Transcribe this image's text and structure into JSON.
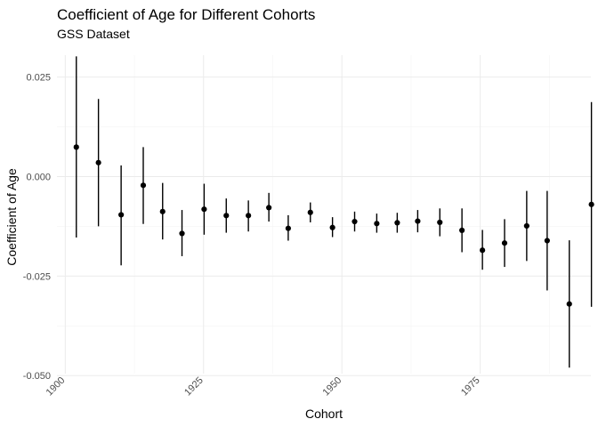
{
  "chart_data": {
    "type": "scatter",
    "title": "Coefficient of Age for Different Cohorts",
    "subtitle": "GSS Dataset",
    "xlabel": "Cohort",
    "ylabel": "Coefficient of Age",
    "xlim": [
      1898.5,
      1995
    ],
    "ylim": [
      -0.0495,
      0.0305
    ],
    "x_ticks": [
      1900,
      1925,
      1950,
      1975
    ],
    "x_tick_labels": [
      "1900",
      "1925",
      "1950",
      "1975"
    ],
    "y_ticks": [
      0.025,
      0,
      -0.025,
      -0.05
    ],
    "y_tick_labels": [
      "0.025",
      "0.000",
      "-0.025",
      "-0.050"
    ],
    "grid": true,
    "error_bars": true,
    "points": [
      {
        "x": 1902.0,
        "y": 0.0074,
        "lo": -0.0153,
        "hi": 0.0302
      },
      {
        "x": 1906.0,
        "y": 0.0035,
        "lo": -0.0125,
        "hi": 0.0195
      },
      {
        "x": 1910.1,
        "y": -0.0096,
        "lo": -0.0223,
        "hi": 0.0028
      },
      {
        "x": 1914.1,
        "y": -0.0022,
        "lo": -0.0119,
        "hi": 0.0074
      },
      {
        "x": 1917.6,
        "y": -0.0088,
        "lo": -0.0158,
        "hi": -0.0016
      },
      {
        "x": 1921.1,
        "y": -0.0143,
        "lo": -0.02,
        "hi": -0.0084
      },
      {
        "x": 1925.1,
        "y": -0.0082,
        "lo": -0.0146,
        "hi": -0.0018
      },
      {
        "x": 1929.1,
        "y": -0.0098,
        "lo": -0.0141,
        "hi": -0.0055
      },
      {
        "x": 1933.1,
        "y": -0.0098,
        "lo": -0.0138,
        "hi": -0.006
      },
      {
        "x": 1936.8,
        "y": -0.0078,
        "lo": -0.0113,
        "hi": -0.0041
      },
      {
        "x": 1940.3,
        "y": -0.013,
        "lo": -0.0161,
        "hi": -0.0097
      },
      {
        "x": 1944.3,
        "y": -0.009,
        "lo": -0.0115,
        "hi": -0.0065
      },
      {
        "x": 1948.3,
        "y": -0.0128,
        "lo": -0.0152,
        "hi": -0.0102
      },
      {
        "x": 1952.3,
        "y": -0.0113,
        "lo": -0.0138,
        "hi": -0.0088
      },
      {
        "x": 1956.3,
        "y": -0.0118,
        "lo": -0.0141,
        "hi": -0.0093
      },
      {
        "x": 1960.0,
        "y": -0.0116,
        "lo": -0.0141,
        "hi": -0.0091
      },
      {
        "x": 1963.7,
        "y": -0.0112,
        "lo": -0.014,
        "hi": -0.0084
      },
      {
        "x": 1967.7,
        "y": -0.0115,
        "lo": -0.015,
        "hi": -0.008
      },
      {
        "x": 1971.7,
        "y": -0.0135,
        "lo": -0.019,
        "hi": -0.008
      },
      {
        "x": 1975.4,
        "y": -0.0185,
        "lo": -0.0234,
        "hi": -0.0134
      },
      {
        "x": 1979.4,
        "y": -0.0167,
        "lo": -0.0227,
        "hi": -0.0107
      },
      {
        "x": 1983.4,
        "y": -0.0124,
        "lo": -0.0212,
        "hi": -0.0036
      },
      {
        "x": 1987.1,
        "y": -0.0161,
        "lo": -0.0286,
        "hi": -0.0036
      },
      {
        "x": 1991.1,
        "y": -0.032,
        "lo": -0.048,
        "hi": -0.016
      },
      {
        "x": 1995.1,
        "y": -0.007,
        "lo": -0.0327,
        "hi": 0.0187
      }
    ]
  }
}
